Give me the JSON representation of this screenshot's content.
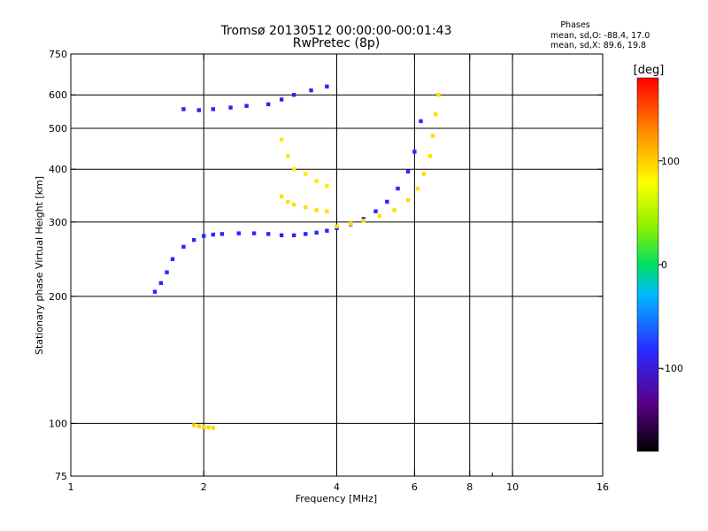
{
  "chart_data": {
    "type": "scatter",
    "title": "Tromsø 20130512 00:00:00-00:01:43",
    "subtitle": "RwPretec (8p)",
    "xlabel": "Frequency [MHz]",
    "ylabel": "Stationary phase Virtual Height [km]",
    "xscale": "log",
    "yscale": "log",
    "xlim": [
      1,
      16
    ],
    "ylim": [
      75,
      750
    ],
    "xticks": [
      1,
      2,
      4,
      6,
      8,
      10,
      16
    ],
    "xtick_labels": [
      "1",
      "2",
      "4",
      "6",
      "8",
      "10",
      "16"
    ],
    "xgrid": [
      2,
      4,
      6,
      8,
      10
    ],
    "xminor": [
      9
    ],
    "yticks": [
      75,
      100,
      200,
      300,
      400,
      500,
      600,
      750
    ],
    "ytick_labels": [
      "75",
      "100",
      "200",
      "300",
      "400",
      "500",
      "600",
      "750"
    ],
    "ygrid": [
      100,
      200,
      300,
      400,
      500,
      600
    ],
    "grid": true,
    "phases_box": {
      "title": "Phases",
      "line_o": "mean, sd,O: -88.4, 17.0",
      "line_x": "mean, sd,X:  89.6, 19.8"
    },
    "colorbar": {
      "label": "[deg]",
      "range": [
        -180,
        180
      ],
      "ticks": [
        100,
        0,
        -100
      ],
      "tick_labels": [
        "100",
        "0",
        "-100"
      ],
      "colormap": "rainbow (black-purple-blue-cyan-green-yellow-orange-red)"
    },
    "series": [
      {
        "trace": "O-mode F-layer trace",
        "phase": -100,
        "x": [
          1.55,
          1.6,
          1.65,
          1.7,
          1.8,
          1.9,
          2.0,
          2.1,
          2.2,
          2.4,
          2.6,
          2.8,
          3.0,
          3.2,
          3.4,
          3.6,
          3.8,
          4.0,
          4.3,
          4.6,
          4.9,
          5.2,
          5.5,
          5.8,
          6.0,
          6.2
        ],
        "y": [
          205,
          215,
          228,
          245,
          262,
          272,
          278,
          280,
          281,
          282,
          282,
          281,
          279,
          279,
          281,
          283,
          286,
          290,
          296,
          305,
          318,
          335,
          360,
          395,
          440,
          520
        ]
      },
      {
        "trace": "X-mode F-layer trace",
        "phase": 95,
        "x": [
          4.0,
          4.3,
          4.6,
          5.0,
          5.4,
          5.8,
          6.1,
          6.3,
          6.5,
          6.6,
          6.7,
          6.8
        ],
        "y": [
          293,
          297,
          302,
          310,
          320,
          338,
          360,
          390,
          430,
          480,
          540,
          600
        ]
      },
      {
        "trace": "O-mode multihop",
        "phase": -105,
        "x": [
          1.8,
          1.95,
          2.1,
          2.3,
          2.5,
          2.8,
          3.0,
          3.2,
          3.5,
          3.8
        ],
        "y": [
          555,
          552,
          555,
          560,
          565,
          570,
          585,
          600,
          615,
          628
        ]
      },
      {
        "trace": "X-mode multihop",
        "phase": 90,
        "x": [
          3.0,
          3.1,
          3.2,
          3.4,
          3.6,
          3.8
        ],
        "y": [
          470,
          430,
          400,
          390,
          375,
          365
        ]
      },
      {
        "trace": "X-mode spread echo",
        "phase": 95,
        "x": [
          3.0,
          3.1,
          3.2,
          3.4,
          3.6,
          3.8
        ],
        "y": [
          345,
          335,
          330,
          325,
          320,
          318
        ]
      },
      {
        "trace": "E-region echo",
        "phase": 100,
        "x": [
          1.9,
          1.95,
          2.0,
          2.05,
          2.1
        ],
        "y": [
          99,
          98.5,
          98,
          97.8,
          97.6
        ]
      }
    ]
  }
}
